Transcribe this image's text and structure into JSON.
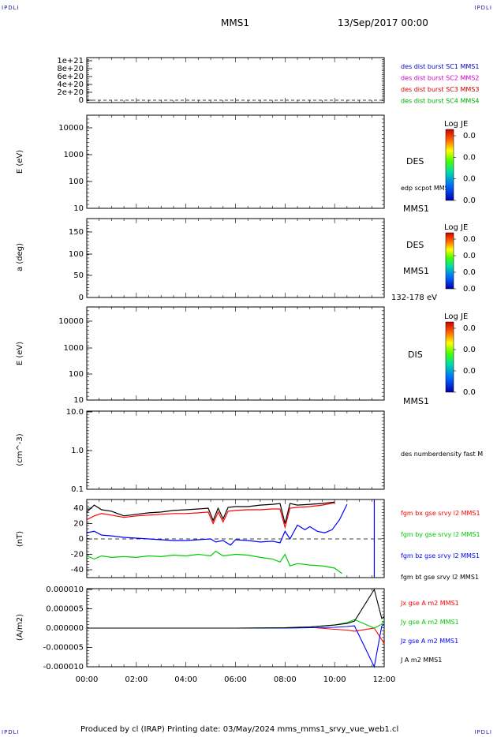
{
  "header": {
    "corner_label": "IPDLI",
    "spacecraft": "MMS1",
    "date": "13/Sep/2017 00:00"
  },
  "footer": {
    "text": "Produced by cl (IRAP)   Printing date: 03/May/2024   mms_mms1_srvy_vue_web1.cl"
  },
  "colors": {
    "bx": "#ff0000",
    "by": "#00cc00",
    "bz": "#0000ff",
    "bt": "#000000",
    "mms2": "#cc00cc",
    "mms3": "#cc0000",
    "mms4": "#00aa00"
  },
  "time_axis": {
    "ticks": [
      "00:00",
      "02:00",
      "04:00",
      "06:00",
      "08:00",
      "10:00",
      "12:00"
    ]
  },
  "colorbar": {
    "title": "Log JE",
    "values": [
      "0.0",
      "0.0",
      "0.0",
      "0.0"
    ]
  },
  "chart_data": [
    {
      "type": "line",
      "panel": "distribution",
      "yticks": [
        "1e+21",
        "8e+20",
        "6e+20",
        "4e+20",
        "2e+20",
        "0"
      ],
      "legend": [
        {
          "name": "des dist burst SC1 MMS1",
          "color": "#0000cc"
        },
        {
          "name": "des dist burst SC2 MMS2",
          "color": "#cc00cc"
        },
        {
          "name": "des dist burst SC3 MMS3",
          "color": "#cc0000"
        },
        {
          "name": "des dist burst SC4 MMS4",
          "color": "#00aa00"
        }
      ],
      "dashed_zero_line": true
    },
    {
      "type": "heatmap",
      "panel": "des_energy",
      "ylabel": "E (eV)",
      "yscale": "log",
      "ylim": [
        10,
        20000
      ],
      "yticks": [
        "10000",
        "1000",
        "100",
        "10"
      ],
      "labels": [
        "DES",
        "edp scpot MMS1",
        "MMS1"
      ]
    },
    {
      "type": "heatmap",
      "panel": "des_pitch",
      "ylabel": "a (deg)",
      "ylim": [
        0,
        180
      ],
      "yticks": [
        "150",
        "100",
        "50",
        "0"
      ],
      "labels": [
        "DES",
        "MMS1",
        "132-178 eV"
      ]
    },
    {
      "type": "heatmap",
      "panel": "dis_energy",
      "ylabel": "E (eV)",
      "yscale": "log",
      "ylim": [
        10,
        20000
      ],
      "yticks": [
        "10000",
        "1000",
        "100",
        "10"
      ],
      "labels": [
        "DIS",
        "MMS1"
      ]
    },
    {
      "type": "line",
      "panel": "density",
      "ylabel": "(cm^-3)",
      "yscale": "log",
      "ylim": [
        0.1,
        10
      ],
      "yticks": [
        "10.0",
        "1.0",
        "0.1"
      ],
      "labels": [
        "des numberdensity fast M"
      ]
    },
    {
      "type": "line",
      "panel": "fgm",
      "ylabel": "(nT)",
      "ylim": [
        -48,
        48
      ],
      "yticks": [
        "40",
        "20",
        "0",
        "-20",
        "-40"
      ],
      "xlim": [
        0,
        12
      ],
      "series": [
        {
          "name": "fgm bx gse srvy l2 MMS1",
          "color": "#ff0000",
          "x": [
            0,
            0.3,
            0.6,
            1,
            1.5,
            2,
            2.5,
            3,
            3.5,
            4,
            4.5,
            4.9,
            5.1,
            5.3,
            5.5,
            5.7,
            6,
            6.5,
            7,
            7.5,
            7.8,
            8.0,
            8.2,
            8.5,
            9,
            9.5,
            10
          ],
          "y": [
            25,
            30,
            33,
            31,
            28,
            30,
            31,
            32,
            33,
            33,
            34,
            35,
            20,
            35,
            22,
            36,
            37,
            38,
            38,
            39,
            39,
            15,
            40,
            41,
            42,
            44,
            47
          ]
        },
        {
          "name": "fgm by gse srvy l2 MMS1",
          "color": "#00cc00",
          "x": [
            0,
            0.3,
            0.6,
            1,
            1.5,
            2,
            2.5,
            3,
            3.5,
            4,
            4.5,
            5,
            5.2,
            5.5,
            6,
            6.5,
            7,
            7.5,
            7.8,
            8.0,
            8.2,
            8.5,
            9,
            9.5,
            10,
            10.3
          ],
          "y": [
            -22,
            -26,
            -22,
            -24,
            -23,
            -24,
            -22,
            -23,
            -21,
            -22,
            -20,
            -22,
            -16,
            -22,
            -20,
            -21,
            -24,
            -26,
            -30,
            -20,
            -35,
            -32,
            -34,
            -35,
            -38,
            -45
          ]
        },
        {
          "name": "fgm bz gse srvy l2 MMS1",
          "color": "#0000ff",
          "x": [
            0,
            0.3,
            0.6,
            1,
            1.5,
            2,
            2.5,
            3,
            3.5,
            4,
            4.5,
            5,
            5.2,
            5.5,
            5.8,
            6,
            6.5,
            7,
            7.5,
            7.8,
            8.0,
            8.2,
            8.5,
            8.8,
            9,
            9.3,
            9.6,
            9.9,
            10.2,
            10.5
          ],
          "y": [
            8,
            10,
            5,
            4,
            2,
            1,
            0,
            -1,
            -2,
            -2,
            -1,
            0,
            -4,
            -2,
            -8,
            -1,
            -2,
            -4,
            -3,
            -5,
            10,
            0,
            18,
            12,
            16,
            10,
            8,
            12,
            25,
            45
          ]
        },
        {
          "name": "fgm bt gse srvy l2 MMS1",
          "color": "#000000",
          "x": [
            0,
            0.3,
            0.6,
            1,
            1.5,
            2,
            2.5,
            3,
            3.5,
            4,
            4.5,
            4.9,
            5.1,
            5.3,
            5.5,
            5.7,
            6,
            6.5,
            7,
            7.5,
            7.8,
            8.0,
            8.2,
            8.5,
            9,
            9.5,
            10
          ],
          "y": [
            35,
            44,
            38,
            36,
            30,
            32,
            34,
            35,
            37,
            38,
            39,
            40,
            24,
            40,
            26,
            41,
            42,
            42,
            44,
            45,
            46,
            20,
            46,
            44,
            45,
            46,
            48
          ]
        }
      ],
      "dashed_zero_line": true,
      "vertical_marker_x": 11.6
    },
    {
      "type": "line",
      "panel": "current",
      "ylabel": "(A/m2)",
      "ylim": [
        -1e-05,
        1e-05
      ],
      "yticks": [
        "0.000010",
        "0.000005",
        "0.000000",
        "-0.000005",
        "-0.000010"
      ],
      "xlim": [
        0,
        12
      ],
      "series": [
        {
          "name": "Jx gse A m2 MMS1",
          "color": "#ff0000",
          "x": [
            0,
            2,
            4,
            6,
            8,
            9,
            10,
            10.5,
            10.8,
            11.6,
            11.9,
            12
          ],
          "y": [
            0,
            0,
            0,
            0,
            0,
            2e-07,
            -3e-07,
            -5e-07,
            -8e-07,
            0,
            -3e-06,
            -4e-06
          ]
        },
        {
          "name": "Jy gse A m2 MMS1",
          "color": "#00cc00",
          "x": [
            0,
            2,
            4,
            6,
            8,
            9,
            10,
            10.5,
            10.8,
            11.6,
            11.9,
            12
          ],
          "y": [
            0,
            0,
            0,
            0,
            1e-07,
            3e-07,
            8e-07,
            1.4e-06,
            2.2e-06,
            0,
            1e-06,
            2e-06
          ]
        },
        {
          "name": "Jz gse A m2 MMS1",
          "color": "#0000ff",
          "x": [
            0,
            2,
            4,
            6,
            8,
            9,
            10,
            10.5,
            10.8,
            11.6,
            11.9,
            12
          ],
          "y": [
            0,
            0,
            0,
            0,
            0,
            1e-07,
            2e-07,
            4e-07,
            6e-07,
            -1e-05,
            5e-07,
            1e-06
          ]
        },
        {
          "name": "J A m2 MMS1",
          "color": "#000000",
          "x": [
            0,
            2,
            4,
            6,
            8,
            9,
            10,
            10.5,
            10.8,
            11.6,
            11.9,
            12
          ],
          "y": [
            0,
            0,
            0,
            0,
            1e-07,
            3e-07,
            8e-07,
            1.2e-06,
            1.8e-06,
            1e-05,
            2.5e-06,
            3e-06
          ]
        }
      ]
    }
  ]
}
